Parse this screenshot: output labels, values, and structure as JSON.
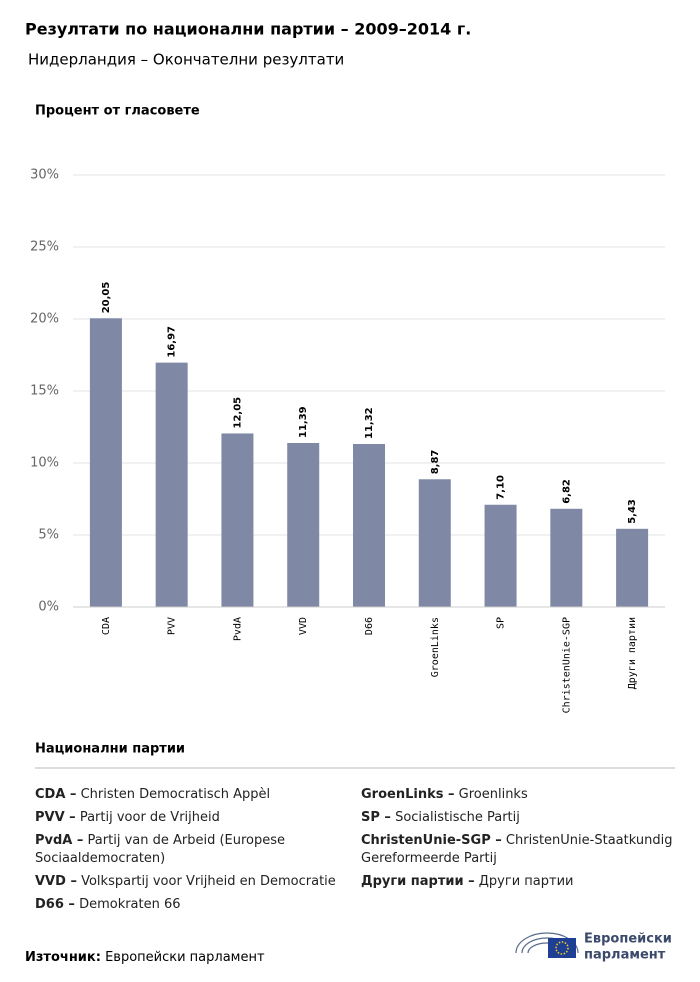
{
  "chart_data": {
    "type": "bar",
    "title": "Резултати по национални партии – 2009–2014 г.",
    "subtitle": "Нидерландия – Окончателни резултати",
    "y_label": "Процент от гласовете",
    "categories": [
      "CDA",
      "PVV",
      "PvdA",
      "VVD",
      "D66",
      "GroenLinks",
      "SP",
      "ChristenUnie-SGP",
      "Други партии"
    ],
    "values": [
      20.05,
      16.97,
      12.05,
      11.39,
      11.32,
      8.87,
      7.1,
      6.82,
      5.43
    ],
    "value_labels": [
      "20,05",
      "16,97",
      "12,05",
      "11,39",
      "11,32",
      "8,87",
      "7,10",
      "6,82",
      "5,43"
    ],
    "color": "#7f88a5",
    "ylim": [
      0,
      30
    ],
    "yticks": [
      {
        "value": 0,
        "label": "0%"
      },
      {
        "value": 5,
        "label": "5%"
      },
      {
        "value": 10,
        "label": "10%"
      },
      {
        "value": 15,
        "label": "15%"
      },
      {
        "value": 20,
        "label": "20%"
      },
      {
        "value": 25,
        "label": "25%"
      },
      {
        "value": 30,
        "label": "30%"
      }
    ],
    "grid": true
  },
  "legend": {
    "title": "Национални партии",
    "left": [
      {
        "abbr": "CDA –",
        "name": "Christen Democratisch Appèl"
      },
      {
        "abbr": "PVV –",
        "name": "Partij voor de Vrijheid"
      },
      {
        "abbr": "PvdA –",
        "name": "Partij van de Arbeid (Europese Sociaaldemocraten)"
      },
      {
        "abbr": "VVD –",
        "name": "Volkspartij voor Vrijheid en Democratie"
      },
      {
        "abbr": "D66 –",
        "name": "Demokraten 66"
      }
    ],
    "right": [
      {
        "abbr": "GroenLinks –",
        "name": "Groenlinks"
      },
      {
        "abbr": "SP –",
        "name": "Socialistische Partij"
      },
      {
        "abbr": "ChristenUnie-SGP –",
        "name": "ChristenUnie-Staatkundig Gereformeerde Partij"
      },
      {
        "abbr": "Други партии –",
        "name": "Други партии"
      }
    ]
  },
  "source": {
    "label": "Източник:",
    "text": "Европейски парламент"
  },
  "logo": [
    "Европейски",
    "парламент"
  ]
}
